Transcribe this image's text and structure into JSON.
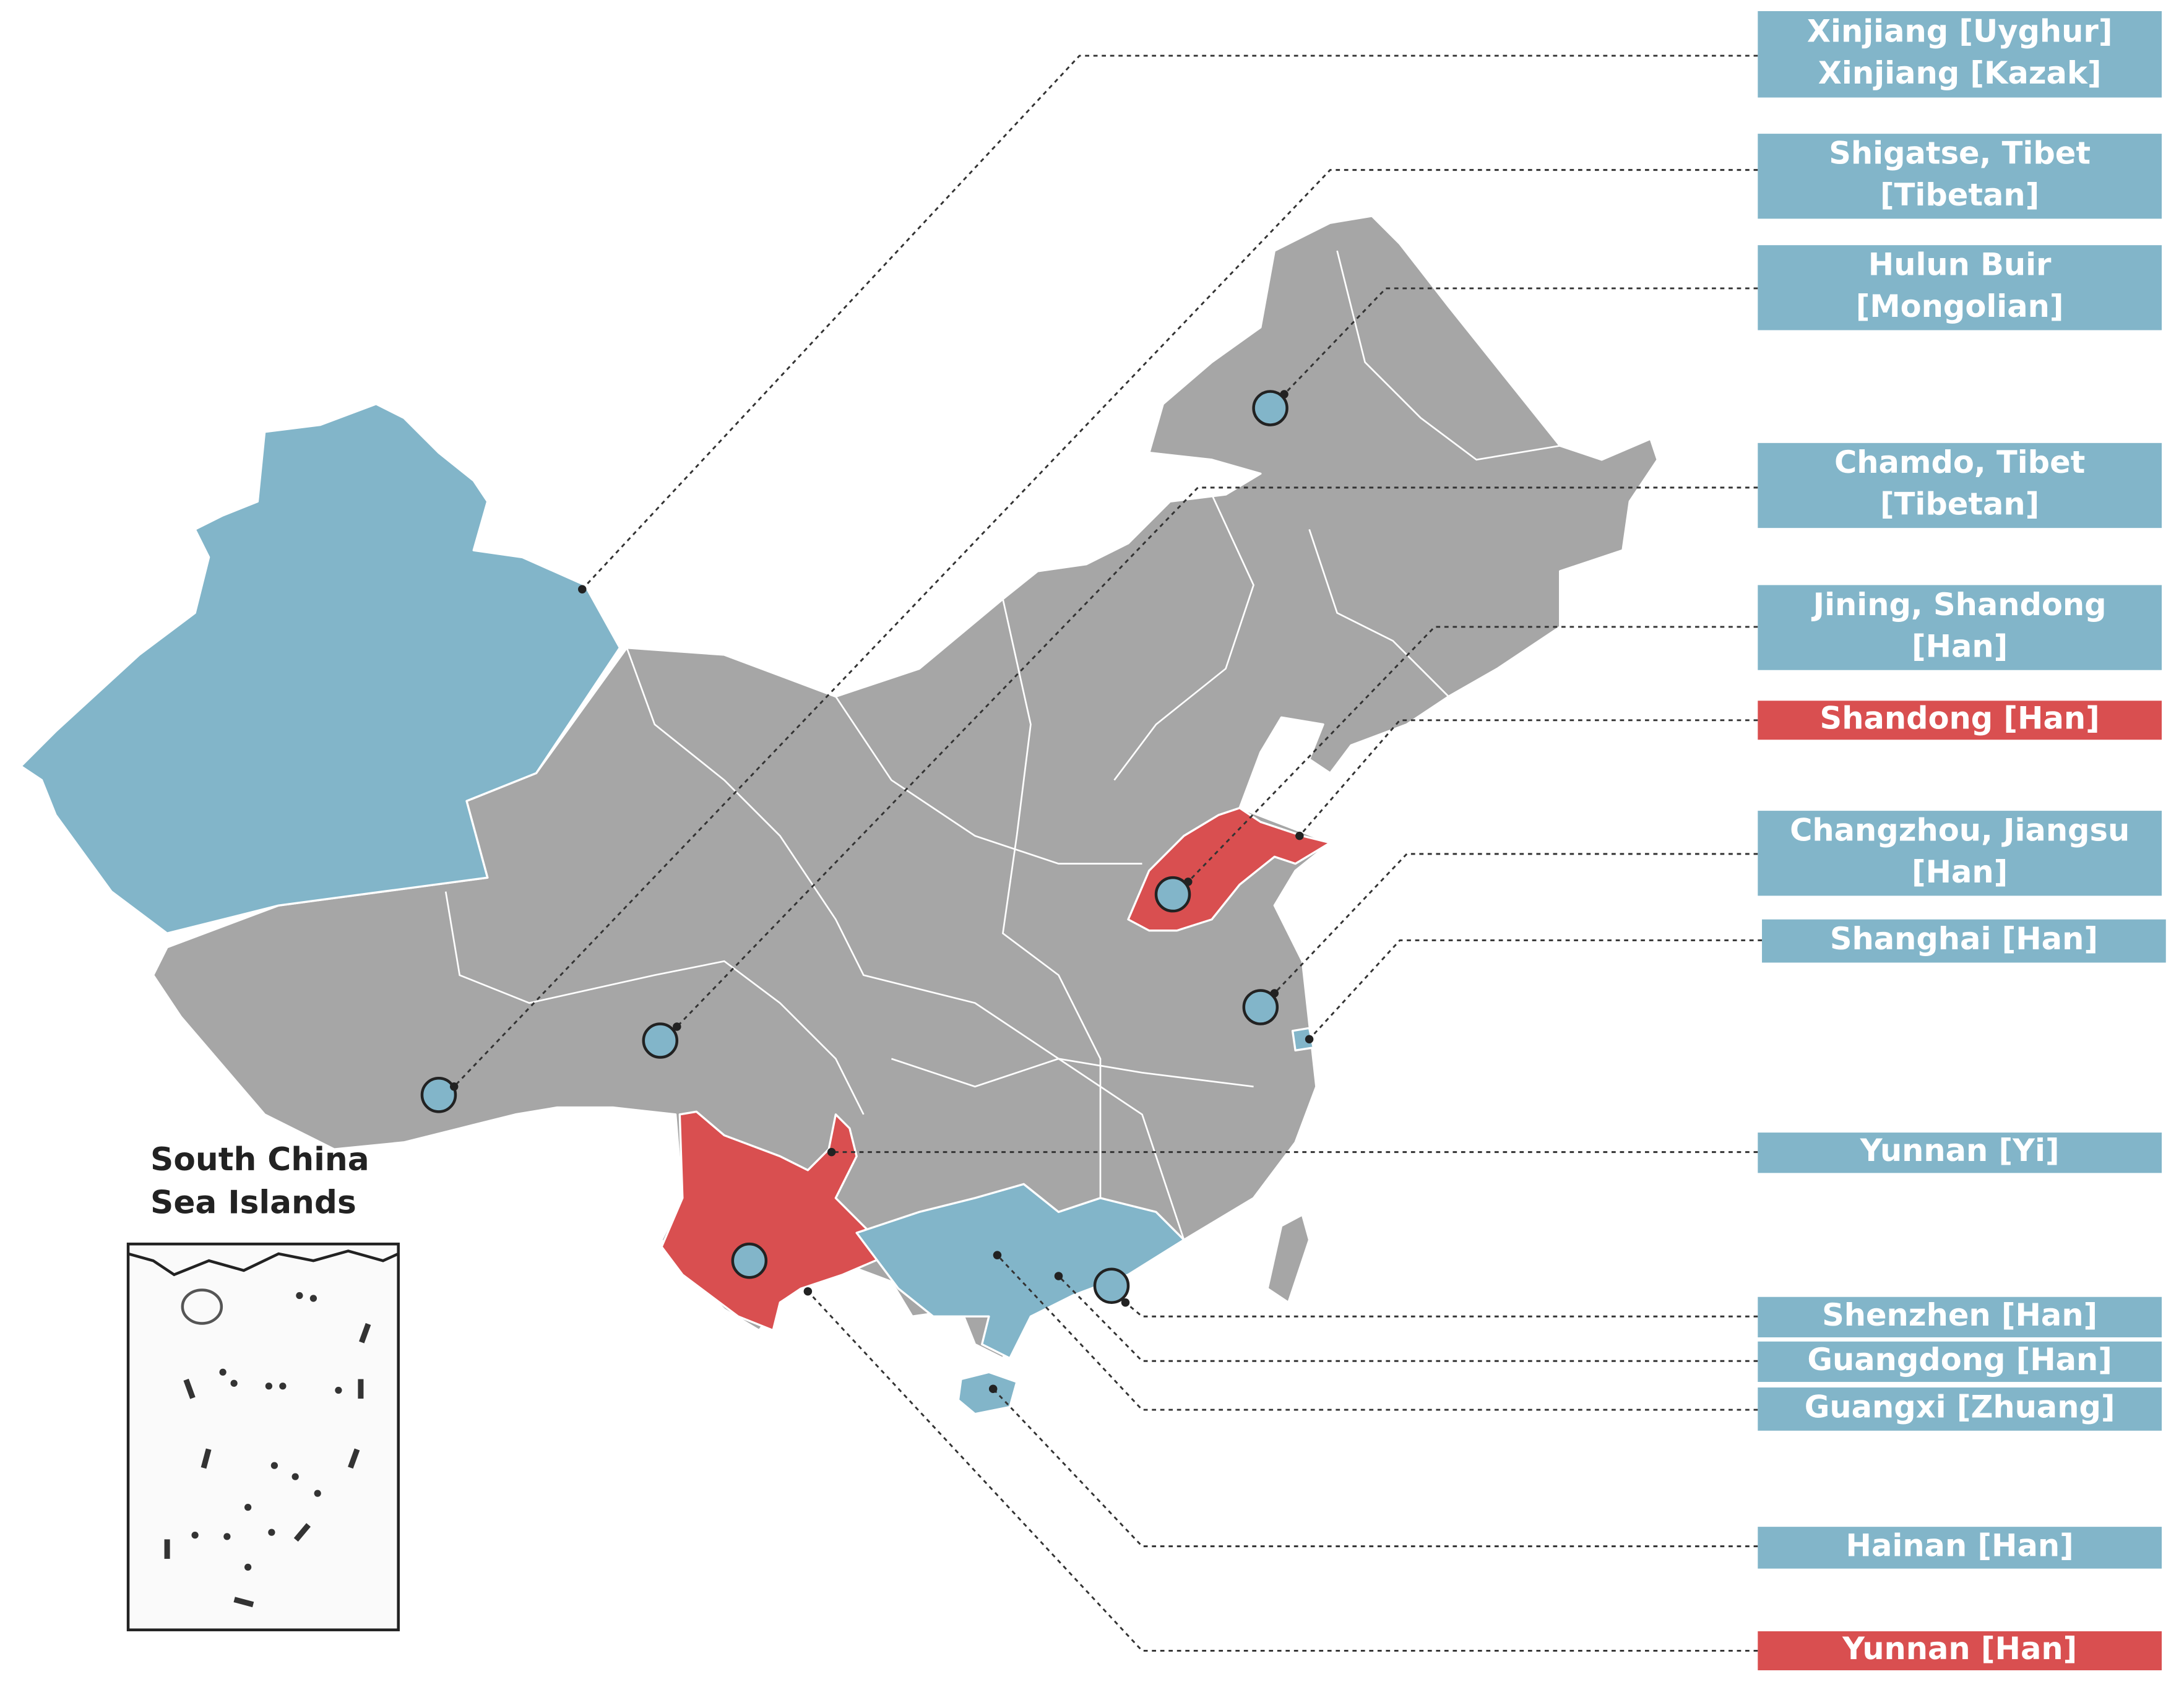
{
  "labels": [
    {
      "lines": [
        "Xinjiang [Uyghur]",
        "Xinjiang [Kazak]"
      ],
      "color": "#82b5c9"
    },
    {
      "lines": [
        "Shigatse, Tibet",
        "[Tibetan]"
      ],
      "color": "#82b5c9"
    },
    {
      "lines": [
        "Hulun Buir",
        "[Mongolian]"
      ],
      "color": "#82b5c9"
    },
    {
      "lines": [
        "Chamdo, Tibet",
        "[Tibetan]"
      ],
      "color": "#82b5c9"
    },
    {
      "lines": [
        "Jining, Shandong",
        "[Han]"
      ],
      "color": "#82b5c9"
    },
    {
      "lines": [
        "Shandong [Han]"
      ],
      "color": "#d94f50"
    },
    {
      "lines": [
        "Changzhou, Jiangsu",
        "[Han]"
      ],
      "color": "#82b5c9"
    },
    {
      "lines": [
        "Shanghai [Han]"
      ],
      "color": "#82b5c9"
    },
    {
      "lines": [
        "Yunnan [Yi]"
      ],
      "color": "#82b5c9"
    },
    {
      "lines": [
        "Shenzhen [Han]"
      ],
      "color": "#82b5c9"
    },
    {
      "lines": [
        "Guangdong [Han]"
      ],
      "color": "#82b5c9"
    },
    {
      "lines": [
        "Guangxi [Zhuang]"
      ],
      "color": "#82b5c9"
    },
    {
      "lines": [
        "Hainan [Han]"
      ],
      "color": "#82b5c9"
    },
    {
      "lines": [
        "Yunnan [Han]"
      ],
      "color": "#d94f50"
    }
  ],
  "inset": {
    "title": [
      "South China",
      "Sea Islands"
    ]
  }
}
